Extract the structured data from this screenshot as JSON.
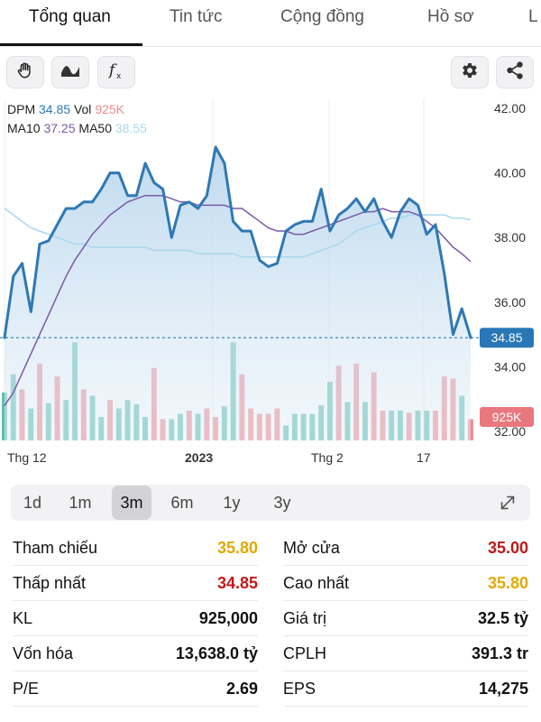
{
  "tabs": [
    "Tổng quan",
    "Tin tức",
    "Cộng đồng",
    "Hồ sơ",
    "L"
  ],
  "toolbar": {
    "left_icons": [
      "hand-icon",
      "wave-icon",
      "function-icon"
    ],
    "right_icons": [
      "gear-icon",
      "share-icon"
    ]
  },
  "legend": {
    "symbol": "DPM",
    "price": "34.85",
    "vol_label": "Vol",
    "vol": "925K",
    "ma10_label": "MA10",
    "ma10": "37.25",
    "ma50_label": "MA50",
    "ma50": "38.55"
  },
  "colors": {
    "price_line": "#2e78b4",
    "ma10": "#7a5aa6",
    "ma50": "#a9d8ef",
    "vol_up": "#5fbfb0",
    "vol_down": "#ee8a8e",
    "price_tag": "#2878b8",
    "vol_tag": "#e9787e",
    "ref_yellow": "#e3a900",
    "down_red": "#c21818"
  },
  "chart_data": {
    "type": "line",
    "yaxis_ticks": [
      "42.00",
      "40.00",
      "38.00",
      "36.00",
      "34.00",
      "32.00"
    ],
    "ylim": [
      32,
      42
    ],
    "x_labels": [
      "Thg 12",
      "2023",
      "Thg 2",
      "17"
    ],
    "price_tag": "34.85",
    "volume_tag": "925K",
    "series": [
      {
        "values": [
          34.9,
          36.8,
          37.2,
          35.7,
          37.8,
          37.9,
          38.4,
          38.9,
          38.9,
          39.1,
          39.1,
          39.5,
          40.0,
          40.0,
          39.3,
          39.3,
          40.3,
          39.7,
          39.5,
          38.0,
          39.0,
          39.1,
          38.9,
          39.3,
          40.8,
          40.3,
          38.5,
          38.2,
          38.2,
          37.3,
          37.1,
          37.2,
          38.2,
          38.4,
          38.5,
          38.5,
          39.5,
          38.2,
          38.7,
          38.9,
          39.2,
          38.8,
          39.2,
          38.5,
          38.0,
          38.8,
          39.2,
          39.0,
          38.1,
          38.4,
          36.9,
          35.0,
          35.8,
          34.9
        ]
      },
      {
        "name": "MA10",
        "values": [
          32.8,
          33.2,
          33.8,
          34.4,
          35.0,
          35.6,
          36.2,
          36.8,
          37.3,
          37.7,
          38.1,
          38.4,
          38.7,
          38.9,
          39.1,
          39.2,
          39.3,
          39.3,
          39.3,
          39.2,
          39.1,
          39.1,
          39.0,
          39.0,
          39.0,
          39.0,
          38.9,
          38.9,
          38.7,
          38.5,
          38.3,
          38.2,
          38.2,
          38.1,
          38.1,
          38.2,
          38.3,
          38.4,
          38.5,
          38.6,
          38.7,
          38.8,
          38.8,
          38.9,
          38.8,
          38.8,
          38.8,
          38.7,
          38.5,
          38.3,
          38.0,
          37.7,
          37.5,
          37.25
        ]
      },
      {
        "name": "MA50",
        "values": [
          38.9,
          38.7,
          38.5,
          38.3,
          38.2,
          38.1,
          38.0,
          37.9,
          37.8,
          37.8,
          37.7,
          37.7,
          37.7,
          37.7,
          37.7,
          37.7,
          37.7,
          37.6,
          37.6,
          37.6,
          37.6,
          37.6,
          37.5,
          37.5,
          37.5,
          37.5,
          37.5,
          37.4,
          37.4,
          37.4,
          37.4,
          37.4,
          37.4,
          37.4,
          37.4,
          37.5,
          37.6,
          37.7,
          37.8,
          38.0,
          38.2,
          38.3,
          38.4,
          38.5,
          38.6,
          38.6,
          38.7,
          38.7,
          38.7,
          38.7,
          38.7,
          38.6,
          38.6,
          38.55
        ]
      },
      {
        "name": "Vol",
        "values": [
          0.45,
          0.62,
          0.48,
          0.3,
          0.72,
          0.35,
          0.6,
          0.38,
          0.92,
          0.48,
          0.42,
          0.22,
          0.38,
          0.3,
          0.38,
          0.34,
          0.22,
          0.68,
          0.2,
          0.2,
          0.25,
          0.28,
          0.25,
          0.3,
          0.22,
          0.32,
          0.92,
          0.62,
          0.3,
          0.25,
          0.25,
          0.3,
          0.14,
          0.25,
          0.25,
          0.25,
          0.33,
          0.55,
          0.7,
          0.36,
          0.72,
          0.36,
          0.64,
          0.28,
          0.28,
          0.28,
          0.26,
          0.28,
          0.28,
          0.28,
          0.6,
          0.58,
          0.42,
          0.2
        ]
      },
      {
        "name": "Vol dir",
        "values": [
          1,
          1,
          -1,
          1,
          -1,
          1,
          -1,
          1,
          1,
          -1,
          1,
          1,
          -1,
          1,
          1,
          1,
          1,
          -1,
          -1,
          1,
          1,
          -1,
          1,
          -1,
          -1,
          1,
          1,
          -1,
          -1,
          -1,
          -1,
          -1,
          1,
          1,
          1,
          1,
          1,
          1,
          -1,
          1,
          -1,
          1,
          -1,
          -1,
          1,
          1,
          -1,
          1,
          1,
          -1,
          -1,
          -1,
          1,
          -1
        ]
      }
    ]
  },
  "periods": [
    "1d",
    "1m",
    "3m",
    "6m",
    "1y",
    "3y"
  ],
  "selected_period": "3m",
  "stats": {
    "left": [
      {
        "label": "Tham chiếu",
        "value": "35.80",
        "color": "#e3a900"
      },
      {
        "label": "Thấp nhất",
        "value": "34.85",
        "color": "#c21818"
      },
      {
        "label": "KL",
        "value": "925,000",
        "color": "#111111"
      },
      {
        "label": "Vốn hóa",
        "value": "13,638.0 tỷ",
        "color": "#111111"
      },
      {
        "label": "P/E",
        "value": "2.69",
        "color": "#111111"
      }
    ],
    "right": [
      {
        "label": "Mở cửa",
        "value": "35.00",
        "color": "#c21818"
      },
      {
        "label": "Cao nhất",
        "value": "35.80",
        "color": "#e3a900"
      },
      {
        "label": "Giá trị",
        "value": "32.5 tỷ",
        "color": "#111111"
      },
      {
        "label": "CPLH",
        "value": "391.3 tr",
        "color": "#111111"
      },
      {
        "label": "EPS",
        "value": "14,275",
        "color": "#111111"
      }
    ]
  }
}
